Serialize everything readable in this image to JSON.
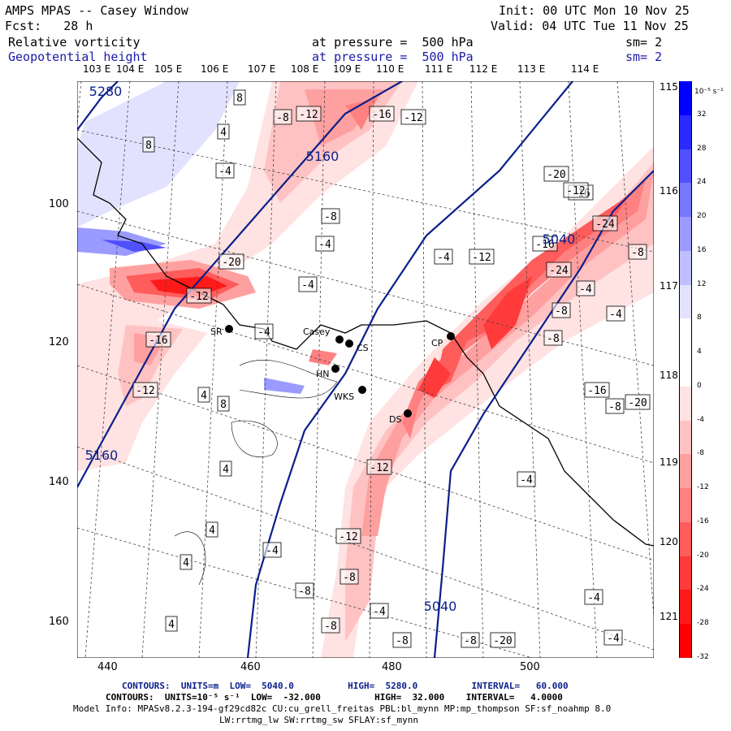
{
  "header": {
    "title": "AMPS MPAS -- Casey Window",
    "init": "Init: 00 UTC Mon 10 Nov 25",
    "fcst": "Fcst:   28 h",
    "valid": "Valid: 04 UTC Tue 11 Nov 25",
    "field1_name": "Relative vorticity",
    "field1_level": "at pressure =  500 hPa",
    "field1_sm": "sm= 2",
    "field2_name": "Geopotential height",
    "field2_level": "at pressure =  500 hPa",
    "field2_sm": "sm= 2"
  },
  "colorbar": {
    "unit": "10⁻⁵ s⁻¹",
    "labels": [
      "32",
      "28",
      "24",
      "20",
      "16",
      "12",
      "8",
      "4",
      "0",
      "-4",
      "-8",
      "-12",
      "-16",
      "-20",
      "-24",
      "-28",
      "-32"
    ],
    "colors": [
      "#0000ff",
      "#2a2aff",
      "#5050ff",
      "#7777ff",
      "#9b9bff",
      "#bfbfff",
      "#e2e2ff",
      "#ffffff",
      "#ffffff",
      "#ffe2e2",
      "#ffc2c2",
      "#ffa0a0",
      "#ff8080",
      "#ff5c5c",
      "#ff3a3a",
      "#ff1a1a",
      "#ff0000"
    ]
  },
  "axes": {
    "x_ticks": [
      "440",
      "460",
      "480",
      "500"
    ],
    "y_ticks": [
      "100",
      "120",
      "140",
      "160"
    ],
    "top_lon": [
      "103 E",
      "104 E",
      "105 E",
      "106 E",
      "107 E",
      "108 E",
      "109 E",
      "110 E",
      "111 E",
      "112 E",
      "113 E",
      "114 E"
    ],
    "right_lon": [
      "115 E",
      "116 E",
      "117 E",
      "118 E",
      "119 E",
      "120 E",
      "121 E"
    ]
  },
  "stations": [
    {
      "name": "Casey"
    },
    {
      "name": "SR"
    },
    {
      "name": "CS"
    },
    {
      "name": "HN"
    },
    {
      "name": "WKS"
    },
    {
      "name": "DS"
    },
    {
      "name": "CP"
    }
  ],
  "height_labels": [
    "5280",
    "5160",
    "5160",
    "5040",
    "5040"
  ],
  "vort_labels": [
    "8",
    "-8",
    "-12",
    "-16",
    "-12",
    "4",
    "8",
    "-4",
    "-20",
    "-12",
    "-8",
    "-4",
    "-4",
    "-20",
    "-16",
    "-24",
    "-12",
    "-16",
    "-8",
    "-4",
    "-12",
    "-24",
    "-4",
    "-16",
    "-12",
    "-4",
    "-8",
    "-8",
    "-4",
    "-20",
    "-16",
    "-8",
    "4",
    "8",
    "4",
    "4",
    "4",
    "4",
    "-4",
    "-8",
    "-8",
    "-12",
    "-12",
    "-8",
    "-4",
    "-8",
    "-8",
    "-20",
    "-4",
    "-4",
    "-4"
  ],
  "footer": {
    "line1": "CONTOURS:  UNITS=m  LOW=  5040.0          HIGH=  5280.0          INTERVAL=   60.000",
    "line2": "CONTOURS:  UNITS=10⁻⁵ s⁻¹  LOW=  -32.000          HIGH=  32.000    INTERVAL=   4.0000",
    "line3": "Model Info: MPASv8.2.3-194-gf29cd82c CU:cu_grell_freitas PBL:bl_mynn MP:mp_thompson SF:sf_noahmp 8.0",
    "line4": "LW:rrtmg_lw SW:rrtmg_sw SFLAY:sf_mynn"
  }
}
